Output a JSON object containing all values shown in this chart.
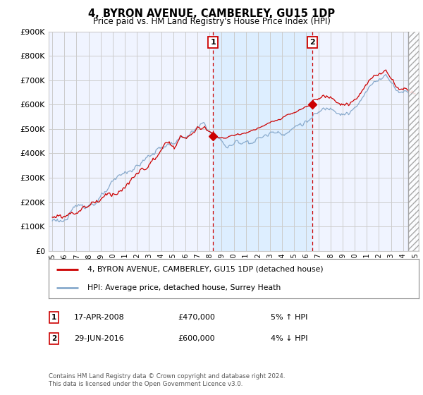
{
  "title": "4, BYRON AVENUE, CAMBERLEY, GU15 1DP",
  "subtitle": "Price paid vs. HM Land Registry's House Price Index (HPI)",
  "ylim": [
    0,
    900000
  ],
  "yticks": [
    0,
    100000,
    200000,
    300000,
    400000,
    500000,
    600000,
    700000,
    800000,
    900000
  ],
  "ytick_labels": [
    "£0",
    "£100K",
    "£200K",
    "£300K",
    "£400K",
    "£500K",
    "£600K",
    "£700K",
    "£800K",
    "£900K"
  ],
  "sale1_date": 2008.29,
  "sale1_price": 470000,
  "sale1_label": "17-APR-2008",
  "sale1_amount": "£470,000",
  "sale1_pct": "5% ↑ HPI",
  "sale2_date": 2016.49,
  "sale2_price": 600000,
  "sale2_label": "29-JUN-2016",
  "sale2_amount": "£600,000",
  "sale2_pct": "4% ↓ HPI",
  "legend_line1": "4, BYRON AVENUE, CAMBERLEY, GU15 1DP (detached house)",
  "legend_line2": "HPI: Average price, detached house, Surrey Heath",
  "footer": "Contains HM Land Registry data © Crown copyright and database right 2024.\nThis data is licensed under the Open Government Licence v3.0.",
  "red_color": "#cc0000",
  "blue_color": "#88aacc",
  "highlight_color": "#ddeeff",
  "grid_color": "#cccccc",
  "bg_color": "#f0f4ff",
  "marker_box_color": "#cc0000",
  "xlim_left": 1994.7,
  "xlim_right": 2025.3,
  "future_cutoff": 2024.42
}
